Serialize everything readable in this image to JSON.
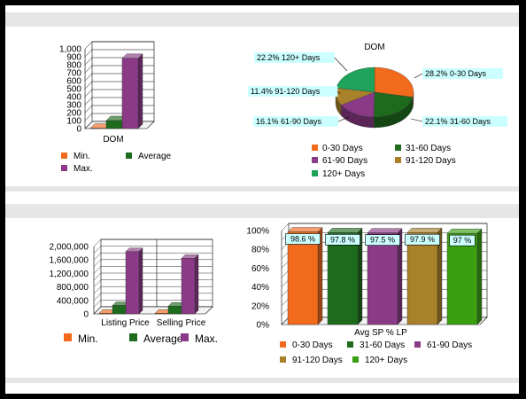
{
  "chart_data": [
    {
      "type": "bar",
      "categories": [
        "DOM"
      ],
      "series": [
        {
          "name": "Min.",
          "values": [
            0
          ]
        },
        {
          "name": "Average",
          "values": [
            100
          ]
        },
        {
          "name": "Max.",
          "values": [
            880
          ]
        }
      ],
      "yticks": [
        "0",
        "100",
        "200",
        "300",
        "400",
        "500",
        "600",
        "700",
        "800",
        "900",
        "1,000"
      ],
      "ylim": [
        0,
        1000
      ],
      "grid": true,
      "legend_position": "bottom"
    },
    {
      "type": "pie",
      "title": "DOM",
      "slices": [
        {
          "name": "0-30 Days",
          "value": 28.2,
          "label": "28.2%  0-30 Days"
        },
        {
          "name": "31-60 Days",
          "value": 22.1,
          "label": "22.1%  31-60 Days"
        },
        {
          "name": "61-90 Days",
          "value": 16.1,
          "label": "16.1%  61-90 Days"
        },
        {
          "name": "91-120 Days",
          "value": 11.4,
          "label": "11.4%  91-120 Days"
        },
        {
          "name": "120+ Days",
          "value": 22.2,
          "label": "22.2%  120+ Days"
        }
      ],
      "legend_position": "bottom"
    },
    {
      "type": "bar",
      "categories": [
        "Listing Price",
        "Selling Price"
      ],
      "series": [
        {
          "name": "Min.",
          "values": [
            0,
            0
          ]
        },
        {
          "name": "Average",
          "values": [
            250000,
            230000
          ]
        },
        {
          "name": "Max.",
          "values": [
            1850000,
            1650000
          ]
        }
      ],
      "yticks": [
        "0",
        "400,000",
        "800,000",
        "1,200,000",
        "1,600,000",
        "2,000,000"
      ],
      "ylim": [
        0,
        2000000
      ],
      "grid": true,
      "legend_position": "bottom"
    },
    {
      "type": "bar",
      "categories": [
        "Avg SP % LP"
      ],
      "series": [
        {
          "name": "0-30 Days",
          "values": [
            98.6
          ],
          "label": "98.6 %"
        },
        {
          "name": "31-60 Days",
          "values": [
            97.8
          ],
          "label": "97.8 %"
        },
        {
          "name": "61-90 Days",
          "values": [
            97.5
          ],
          "label": "97.5 %"
        },
        {
          "name": "91-120 Days",
          "values": [
            97.9
          ],
          "label": "97.9 %"
        },
        {
          "name": "120+ Days",
          "values": [
            97.0
          ],
          "label": "97 %"
        }
      ],
      "yticks": [
        "0%",
        "20%",
        "40%",
        "60%",
        "80%",
        "100%"
      ],
      "ylim": [
        0,
        100
      ],
      "grid": true,
      "legend_position": "bottom"
    }
  ],
  "colors": {
    "orange": "#f26a1b",
    "dark_green": "#1e6b1e",
    "purple": "#8a3a86",
    "olive": "#a8812a",
    "bright_green": "#1fa35a",
    "lime": "#3aa012",
    "label_bg": "#ccffff"
  }
}
